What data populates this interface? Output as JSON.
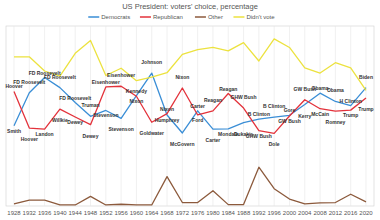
{
  "chart_data": {
    "type": "line",
    "title": "US President: voters' choice, percentage",
    "categories": [
      "1928",
      "1932",
      "1936",
      "1940",
      "1944",
      "1948",
      "1952",
      "1956",
      "1960",
      "1964",
      "1968",
      "1972",
      "1976",
      "1980",
      "1984",
      "1988",
      "1992",
      "1996",
      "2000",
      "2004",
      "2008",
      "2012",
      "2016",
      "2020"
    ],
    "series": [
      {
        "name": "Democrats",
        "color": "#3a8ed6",
        "values": [
          23.2,
          32.7,
          37.1,
          34.2,
          29.9,
          25.9,
          27.6,
          25.3,
          31.9,
          38.4,
          26.3,
          21.1,
          27.5,
          22.2,
          22.3,
          24.1,
          25.1,
          25.7,
          26.2,
          29.3,
          32.6,
          30.2,
          29.0,
          34.2
        ],
        "labels": [
          "Smith",
          "FD Roosevelt",
          "FD Roosevelt",
          "FD Roosevelt",
          "FD Roosevelt",
          "Truman",
          "Stevenson",
          "Stevenson",
          "Kennedy",
          "Johnson",
          "Humphrey",
          "McGovern",
          "Carter",
          "Carter",
          "Mondale",
          "Dukakis",
          "B Clinton",
          "B Clinton",
          "Gore",
          "Kerry",
          "Obama",
          "Obama",
          "H Clinton",
          "Biden"
        ]
      },
      {
        "name": "Republican",
        "color": "#e3323b",
        "values": [
          33.1,
          22.5,
          22.2,
          28.0,
          25.7,
          23.5,
          34.4,
          34.6,
          31.7,
          24.2,
          26.7,
          34.1,
          26.3,
          27.5,
          32.5,
          28.3,
          21.8,
          21.0,
          26.0,
          30.7,
          28.1,
          27.4,
          27.7,
          31.2
        ],
        "labels": [
          "Hoover",
          "Hoover",
          "Landon",
          "Willkie",
          "Dewey",
          "Dewey",
          "Eisenhower",
          "Eisenhower",
          "Nixon",
          "Goldwater",
          "Nixon",
          "Nixon",
          "Ford",
          "Reagan",
          "Reagan",
          "GHW Bush",
          "GHW Bush",
          "Dole",
          "GW Bush",
          "GW Bush",
          "McCain",
          "Romney",
          "Trump",
          "Trump"
        ]
      },
      {
        "name": "Other",
        "color": "#8c5a3c",
        "values": [
          0.6,
          1.7,
          1.7,
          0.3,
          0.3,
          2.8,
          0.3,
          0.5,
          0.3,
          0.3,
          8.5,
          1.0,
          1.0,
          4.4,
          0.4,
          0.4,
          11.2,
          5.0,
          2.0,
          0.6,
          0.9,
          1.0,
          3.4,
          1.2
        ]
      },
      {
        "name": "Didn't vote",
        "color": "#ece23f",
        "values": [
          43.1,
          43.1,
          39.0,
          37.5,
          44.1,
          47.8,
          37.7,
          39.8,
          36.2,
          37.2,
          38.5,
          43.8,
          45.2,
          45.8,
          44.8,
          47.2,
          41.9,
          48.3,
          45.8,
          39.9,
          38.4,
          41.4,
          39.9,
          33.4
        ]
      }
    ],
    "ylim": [
      0,
      52
    ],
    "grid": true,
    "legend": "top",
    "tick_labels": "x"
  }
}
